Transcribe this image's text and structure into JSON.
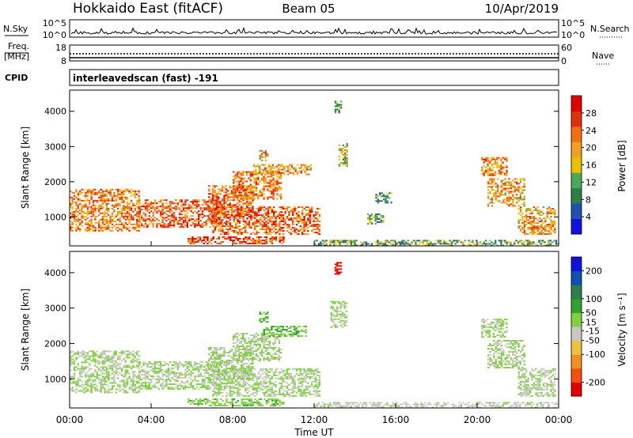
{
  "header": {
    "station": "Hokkaido East (fitACF)",
    "beam": "Beam 05",
    "date": "10/Apr/2019"
  },
  "summary_panel": {
    "left_label": "N.Sky",
    "right_label": "N.Search",
    "left_ticks": [
      "10^5",
      "10^0"
    ],
    "right_ticks": [
      "10^5",
      "10^0"
    ]
  },
  "freq_panel": {
    "left_label_1": "Freq.",
    "left_label_2": "[MHz]",
    "right_label": "Nave",
    "left_ticks": [
      "18",
      "8"
    ],
    "right_ticks": [
      "60",
      "0"
    ]
  },
  "cpid_panel": {
    "label": "CPID",
    "program": "interleavedscan (fast) -191"
  },
  "x_axis": {
    "label": "Time UT",
    "ticks": [
      "00:00",
      "04:00",
      "08:00",
      "12:00",
      "16:00",
      "20:00",
      "00:00"
    ]
  },
  "power_panel": {
    "ylabel": "Slant Range [km]",
    "yticks": [
      "4000",
      "3000",
      "2000",
      "1000"
    ],
    "colorbar_label": "Power [dB]",
    "colorbar_ticks": [
      "28",
      "24",
      "20",
      "16",
      "12",
      "8",
      "4"
    ]
  },
  "velocity_panel": {
    "ylabel": "Slant Range [km]",
    "yticks": [
      "4000",
      "3000",
      "2000",
      "1000"
    ],
    "colorbar_label": "Velocity [m s⁻¹]",
    "colorbar_ticks": [
      "200",
      "100",
      "50",
      "15",
      "-15",
      "-50",
      "-100",
      "-200"
    ]
  },
  "chart_data": [
    {
      "type": "heatmap",
      "name": "power",
      "x_range_hours": [
        0,
        24
      ],
      "y_range_km": [
        180,
        4600
      ],
      "colorbar_label": "Power [dB]",
      "colorbar_range": [
        0,
        32
      ],
      "colorbar_ticks": [
        4,
        8,
        12,
        16,
        20,
        24,
        28
      ],
      "colors": [
        "#1010e0",
        "#2050b0",
        "#2e7d4a",
        "#4aaa5a",
        "#e8c000",
        "#f0a020",
        "#f07010",
        "#e03010",
        "#e00000"
      ],
      "regions": [
        {
          "t": [
            0.0,
            3.4
          ],
          "r": [
            600,
            1800
          ],
          "db": 22
        },
        {
          "t": [
            3.4,
            7.5
          ],
          "r": [
            700,
            1500
          ],
          "db": 24
        },
        {
          "t": [
            6.8,
            9.0
          ],
          "r": [
            1000,
            1900
          ],
          "db": 24
        },
        {
          "t": [
            8.0,
            10.4
          ],
          "r": [
            1500,
            2300
          ],
          "db": 22
        },
        {
          "t": [
            9.0,
            11.8
          ],
          "r": [
            2200,
            2500
          ],
          "db": 20
        },
        {
          "t": [
            9.3,
            9.7
          ],
          "r": [
            2600,
            2900
          ],
          "db": 20
        },
        {
          "t": [
            7.0,
            12.3
          ],
          "r": [
            500,
            1300
          ],
          "db": 24
        },
        {
          "t": [
            5.8,
            10.5
          ],
          "r": [
            250,
            450
          ],
          "db": 26
        },
        {
          "t": [
            13.2,
            13.6
          ],
          "r": [
            2450,
            3100
          ],
          "db": 16
        },
        {
          "t": [
            13.0,
            13.3
          ],
          "r": [
            3950,
            4300
          ],
          "db": 12
        },
        {
          "t": [
            15.0,
            15.8
          ],
          "r": [
            1400,
            1700
          ],
          "db": 12
        },
        {
          "t": [
            14.6,
            15.4
          ],
          "r": [
            800,
            1100
          ],
          "db": 12
        },
        {
          "t": [
            20.2,
            21.5
          ],
          "r": [
            2200,
            2700
          ],
          "db": 22
        },
        {
          "t": [
            20.5,
            22.3
          ],
          "r": [
            1300,
            2100
          ],
          "db": 20
        },
        {
          "t": [
            22.0,
            23.8
          ],
          "r": [
            500,
            1300
          ],
          "db": 20
        },
        {
          "t": [
            12.0,
            24.0
          ],
          "r": [
            200,
            350
          ],
          "db": 12
        }
      ]
    },
    {
      "type": "heatmap",
      "name": "velocity",
      "x_range_hours": [
        0,
        24
      ],
      "y_range_km": [
        180,
        4600
      ],
      "colorbar_label": "Velocity [m s⁻¹]",
      "colorbar_range": [
        -250,
        250
      ],
      "colorbar_ticks": [
        -200,
        -100,
        -50,
        -15,
        15,
        50,
        100,
        200
      ],
      "colors": [
        "#e00000",
        "#f05010",
        "#f09020",
        "#f0c040",
        "#c8c8c0",
        "#80d040",
        "#30a030",
        "#2e7d4a",
        "#1050b0",
        "#1010e0"
      ],
      "regions": [
        {
          "t": [
            0.0,
            3.4
          ],
          "r": [
            600,
            1800
          ],
          "v": 0
        },
        {
          "t": [
            3.4,
            7.5
          ],
          "r": [
            700,
            1500
          ],
          "v": 0
        },
        {
          "t": [
            6.8,
            9.0
          ],
          "r": [
            1000,
            1900
          ],
          "v": 0
        },
        {
          "t": [
            8.0,
            10.4
          ],
          "r": [
            1500,
            2300
          ],
          "v": 0
        },
        {
          "t": [
            9.5,
            11.6
          ],
          "r": [
            2200,
            2500
          ],
          "v": 40
        },
        {
          "t": [
            9.3,
            9.7
          ],
          "r": [
            2600,
            2900
          ],
          "v": 60
        },
        {
          "t": [
            7.0,
            12.3
          ],
          "r": [
            500,
            1300
          ],
          "v": 0
        },
        {
          "t": [
            5.8,
            10.5
          ],
          "r": [
            250,
            450
          ],
          "v": 30
        },
        {
          "t": [
            12.8,
            13.6
          ],
          "r": [
            2450,
            3200
          ],
          "v": 0
        },
        {
          "t": [
            13.0,
            13.3
          ],
          "r": [
            3950,
            4300
          ],
          "v": -220
        },
        {
          "t": [
            20.2,
            21.5
          ],
          "r": [
            2200,
            2700
          ],
          "v": 0
        },
        {
          "t": [
            20.5,
            22.3
          ],
          "r": [
            1300,
            2100
          ],
          "v": 0
        },
        {
          "t": [
            22.0,
            23.8
          ],
          "r": [
            500,
            1300
          ],
          "v": 0
        },
        {
          "t": [
            12.0,
            24.0
          ],
          "r": [
            200,
            350
          ],
          "v": -20
        }
      ]
    }
  ]
}
